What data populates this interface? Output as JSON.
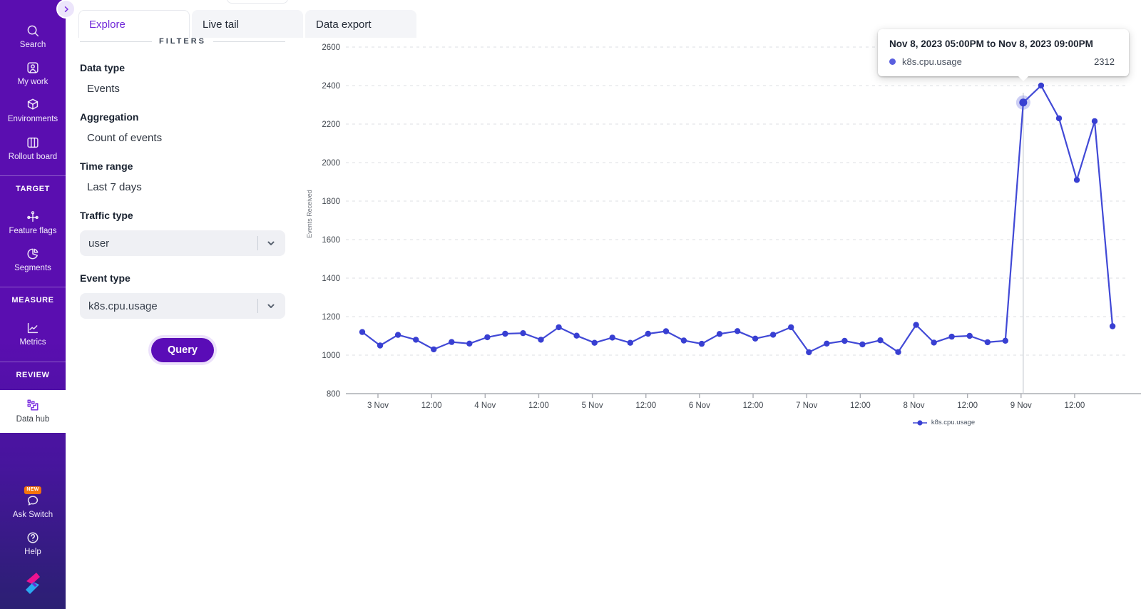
{
  "colors": {
    "accent": "#5a0cb7",
    "line": "#4149d6",
    "badge": "#f4740c",
    "active_tab_text": "#7028d8"
  },
  "sidebar": {
    "expand_button": {
      "icon": "chevron-right-icon"
    },
    "sections": [
      {
        "header": null,
        "items": [
          {
            "label": "Search",
            "icon": "search-icon"
          },
          {
            "label": "My work",
            "icon": "user-card-icon"
          },
          {
            "label": "Environments",
            "icon": "cube-icon"
          },
          {
            "label": "Rollout board",
            "icon": "columns-board-icon"
          }
        ]
      },
      {
        "header": "TARGET",
        "items": [
          {
            "label": "Feature flags",
            "icon": "crossroads-icon"
          },
          {
            "label": "Segments",
            "icon": "pie-chart-icon"
          }
        ]
      },
      {
        "header": "MEASURE",
        "items": [
          {
            "label": "Metrics",
            "icon": "line-chart-icon"
          }
        ]
      },
      {
        "header": "REVIEW",
        "items": [
          {
            "label": "Data hub",
            "icon": "data-hub-icon",
            "active": true
          }
        ]
      }
    ],
    "footer_items": [
      {
        "label": "Ask Switch",
        "icon": "chat-bubble-icon",
        "badge": "NEW"
      },
      {
        "label": "Help",
        "icon": "help-circle-icon"
      }
    ],
    "logo_icon": "switch-logo"
  },
  "tabs": [
    {
      "label": "Explore",
      "active": true
    },
    {
      "label": "Live tail",
      "active": false
    },
    {
      "label": "Data export",
      "active": false
    }
  ],
  "filters": {
    "heading": "FILTERS",
    "fields": [
      {
        "label": "Data type",
        "value": "Events",
        "type": "static"
      },
      {
        "label": "Aggregation",
        "value": "Count of events",
        "type": "static"
      },
      {
        "label": "Time range",
        "value": "Last 7 days",
        "type": "static"
      },
      {
        "label": "Traffic type",
        "value": "user",
        "type": "select"
      },
      {
        "label": "Event type",
        "value": "k8s.cpu.usage",
        "type": "select"
      }
    ],
    "query_label": "Query"
  },
  "chart_data": {
    "type": "line",
    "ylabel": "Events Received",
    "ylim": [
      800,
      2600
    ],
    "grid": true,
    "legend_position": "bottom",
    "y_ticks": [
      800,
      1000,
      1200,
      1400,
      1600,
      1800,
      2000,
      2200,
      2400,
      2600
    ],
    "x_tick_labels": [
      "3 Nov",
      "12:00",
      "4 Nov",
      "12:00",
      "5 Nov",
      "12:00",
      "6 Nov",
      "12:00",
      "7 Nov",
      "12:00",
      "8 Nov",
      "12:00",
      "9 Nov",
      "12:00"
    ],
    "interval_hours": 4,
    "series": [
      {
        "name": "k8s.cpu.usage",
        "color": "#4149d6",
        "values": [
          1120,
          1050,
          1105,
          1080,
          1030,
          1068,
          1060,
          1093,
          1111,
          1114,
          1080,
          1145,
          1101,
          1064,
          1091,
          1064,
          1111,
          1124,
          1076,
          1059,
          1110,
          1125,
          1086,
          1106,
          1145,
          1015,
          1060,
          1074,
          1056,
          1077,
          1016,
          1157,
          1065,
          1096,
          1100,
          1067,
          1075,
          2312,
          2400,
          2230,
          1910,
          2215,
          1150
        ]
      }
    ],
    "highlight": {
      "index": 37,
      "value": 2312
    },
    "tooltip": {
      "title": "Nov 8, 2023 05:00PM to Nov 8, 2023 09:00PM",
      "series": "k8s.cpu.usage",
      "value": "2312"
    },
    "legend": [
      {
        "label": "k8s.cpu.usage"
      }
    ]
  }
}
